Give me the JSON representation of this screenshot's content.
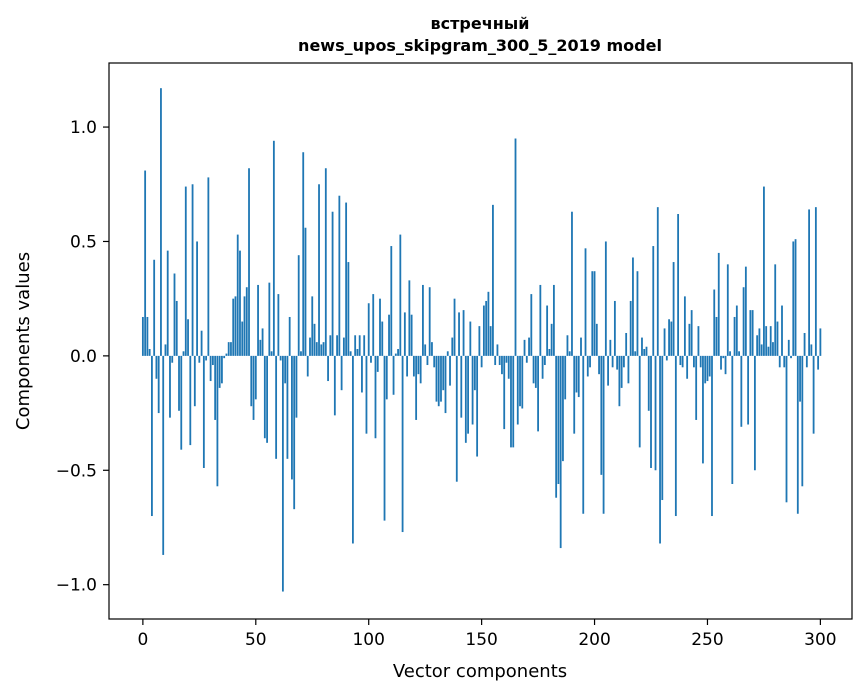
{
  "chart_data": {
    "type": "bar",
    "title": "встречный",
    "subtitle": "news_upos_skipgram_300_5_2019 model",
    "xlabel": "Vector components",
    "ylabel": "Components values",
    "xlim": [
      -15,
      314
    ],
    "ylim": [
      -1.15,
      1.28
    ],
    "xticks": [
      0,
      50,
      100,
      150,
      200,
      250,
      300
    ],
    "xtick_labels": [
      "0",
      "50",
      "100",
      "150",
      "200",
      "250",
      "300"
    ],
    "yticks": [
      -1.0,
      -0.5,
      0.0,
      0.5,
      1.0
    ],
    "ytick_labels": [
      "−1.0",
      "−0.5",
      "0.0",
      "0.5",
      "1.0"
    ],
    "grid": false,
    "bar_color": "#1f77b4",
    "values": [
      0.17,
      0.81,
      0.17,
      0.03,
      -0.7,
      0.42,
      -0.1,
      -0.25,
      1.17,
      -0.87,
      0.05,
      0.46,
      -0.27,
      -0.03,
      0.36,
      0.24,
      -0.24,
      -0.41,
      0.02,
      0.74,
      0.16,
      -0.39,
      0.75,
      -0.22,
      0.5,
      -0.03,
      0.11,
      -0.49,
      -0.02,
      0.78,
      -0.11,
      -0.04,
      -0.28,
      -0.57,
      -0.14,
      -0.12,
      -0.01,
      0.01,
      0.06,
      0.06,
      0.25,
      0.26,
      0.53,
      0.46,
      0.15,
      0.26,
      0.3,
      0.82,
      -0.22,
      -0.28,
      -0.19,
      0.31,
      0.07,
      0.12,
      -0.36,
      -0.38,
      0.32,
      0.02,
      0.94,
      -0.45,
      0.27,
      -0.02,
      -1.03,
      -0.12,
      -0.45,
      0.17,
      -0.54,
      -0.67,
      -0.27,
      0.44,
      0.02,
      0.89,
      0.56,
      -0.09,
      0.08,
      0.26,
      0.14,
      0.06,
      0.75,
      0.05,
      0.06,
      0.82,
      -0.11,
      0.09,
      0.63,
      -0.26,
      0.09,
      0.7,
      -0.15,
      0.08,
      0.67,
      0.41,
      0.02,
      -0.82,
      0.09,
      0.03,
      0.09,
      -0.16,
      0.09,
      -0.34,
      0.23,
      -0.03,
      0.27,
      -0.36,
      -0.07,
      0.25,
      0.15,
      -0.72,
      -0.19,
      0.18,
      0.48,
      -0.17,
      0.01,
      0.03,
      0.53,
      -0.77,
      0.19,
      -0.09,
      0.33,
      0.18,
      -0.09,
      -0.28,
      -0.08,
      -0.12,
      0.31,
      0.05,
      -0.04,
      0.3,
      0.06,
      -0.05,
      -0.2,
      -0.22,
      -0.2,
      -0.15,
      -0.25,
      0.02,
      -0.13,
      0.08,
      0.25,
      -0.55,
      0.19,
      -0.27,
      0.2,
      -0.38,
      -0.34,
      0.15,
      -0.3,
      -0.15,
      -0.44,
      0.13,
      -0.05,
      0.22,
      0.24,
      0.28,
      0.13,
      0.66,
      -0.04,
      0.05,
      -0.04,
      -0.08,
      -0.32,
      -0.03,
      -0.1,
      -0.4,
      -0.4,
      0.95,
      -0.3,
      -0.22,
      -0.23,
      0.07,
      -0.03,
      0.08,
      0.27,
      -0.12,
      -0.14,
      -0.33,
      0.31,
      -0.1,
      -0.04,
      0.22,
      0.03,
      0.14,
      0.31,
      -0.62,
      -0.56,
      -0.84,
      -0.46,
      -0.19,
      0.09,
      0.02,
      0.63,
      -0.34,
      -0.16,
      -0.18,
      0.08,
      -0.69,
      0.47,
      -0.09,
      -0.05,
      0.37,
      0.37,
      0.14,
      -0.08,
      -0.52,
      -0.69,
      0.5,
      -0.13,
      0.07,
      -0.05,
      0.24,
      -0.06,
      -0.22,
      -0.14,
      -0.05,
      0.1,
      -0.12,
      0.24,
      0.43,
      0.02,
      0.37,
      -0.4,
      0.08,
      0.03,
      0.04,
      -0.24,
      -0.49,
      0.48,
      -0.5,
      0.65,
      -0.82,
      -0.63,
      0.12,
      -0.02,
      0.16,
      0.15,
      0.41,
      -0.7,
      0.62,
      -0.04,
      -0.05,
      0.26,
      -0.1,
      0.14,
      0.2,
      -0.05,
      -0.28,
      0.13,
      -0.05,
      -0.47,
      -0.12,
      -0.11,
      -0.09,
      -0.7,
      0.29,
      0.17,
      0.45,
      -0.06,
      -0.01,
      -0.08,
      0.4,
      0.02,
      -0.56,
      0.17,
      0.22,
      0.02,
      -0.31,
      0.3,
      0.39,
      -0.3,
      0.2,
      0.2,
      -0.5,
      0.09,
      0.12,
      0.05,
      0.74,
      0.13,
      0.04,
      0.13,
      0.06,
      0.4,
      0.15,
      -0.05,
      0.22,
      -0.05,
      -0.64,
      0.07,
      -0.01,
      0.5,
      0.51,
      -0.69,
      -0.2,
      -0.57,
      0.1,
      -0.05,
      0.64,
      0.05,
      -0.34,
      0.65,
      -0.06,
      0.12
    ]
  }
}
